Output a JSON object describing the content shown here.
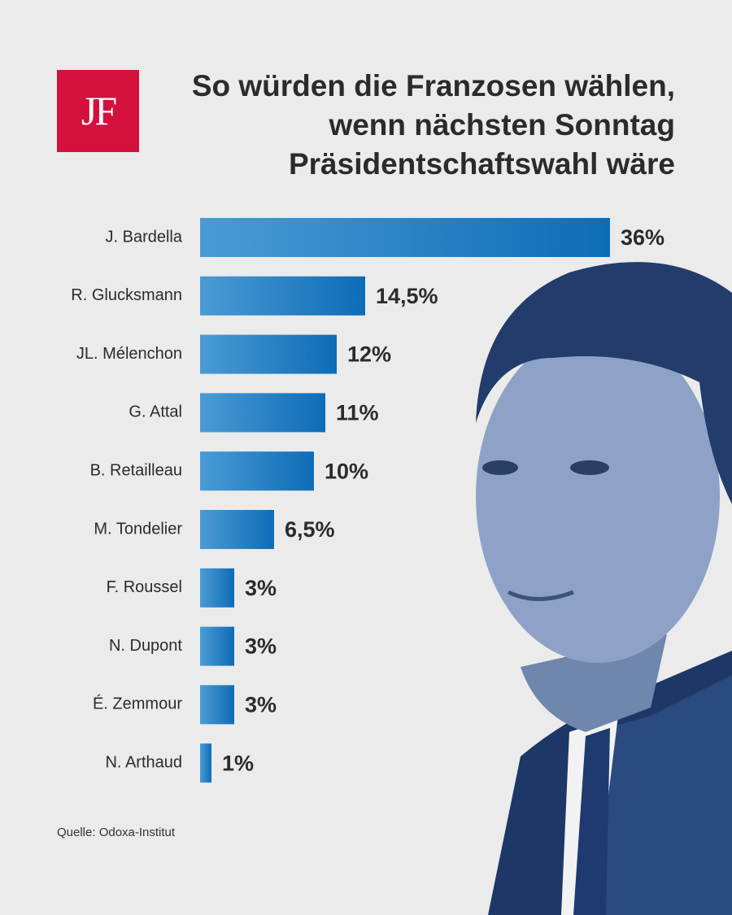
{
  "chart_data": {
    "type": "bar",
    "orientation": "horizontal",
    "logo": "JF",
    "title": "So würden die Franzosen wählen,\nwenn nächsten Sonntag\nPräsidentschaftswahl wäre",
    "categories": [
      "J. Bardella",
      "R. Glucksmann",
      "JL. Mélenchon",
      "G. Attal",
      "B. Retailleau",
      "M. Tondelier",
      "F. Roussel",
      "N. Dupont",
      "É. Zemmour",
      "N. Arthaud"
    ],
    "values": [
      36,
      14.5,
      12,
      11,
      10,
      6.5,
      3,
      3,
      3,
      1
    ],
    "value_labels": [
      "36%",
      "14,5%",
      "12%",
      "11%",
      "10%",
      "6,5%",
      "3%",
      "3%",
      "3%",
      "1%"
    ],
    "color": "#1a78c2",
    "source": "Quelle: Odoxa-Institut"
  }
}
